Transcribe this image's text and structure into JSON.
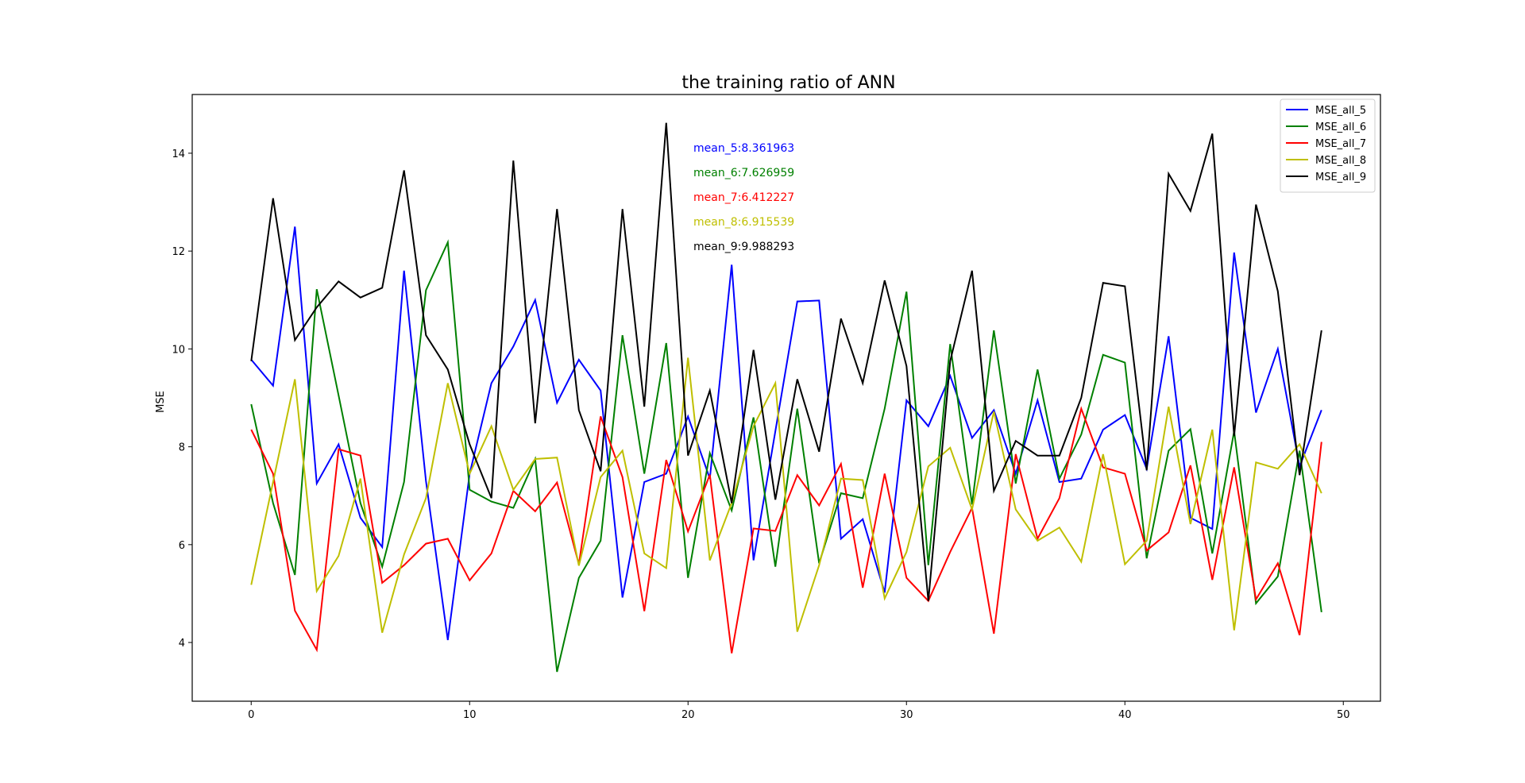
{
  "chart_data": {
    "type": "line",
    "title": "the training ratio of ANN",
    "xlabel": "",
    "ylabel": "MSE",
    "xlim": [
      -2.7,
      51.7
    ],
    "ylim": [
      2.8,
      15.2
    ],
    "xticks": [
      0,
      10,
      20,
      30,
      40,
      50
    ],
    "yticks": [
      4,
      6,
      8,
      10,
      12,
      14
    ],
    "grid": false,
    "legend_position": "top-right",
    "x": [
      0,
      1,
      2,
      3,
      4,
      5,
      6,
      7,
      8,
      9,
      10,
      11,
      12,
      13,
      14,
      15,
      16,
      17,
      18,
      19,
      20,
      21,
      22,
      23,
      24,
      25,
      26,
      27,
      28,
      29,
      30,
      31,
      32,
      33,
      34,
      35,
      36,
      37,
      38,
      39,
      40,
      41,
      42,
      43,
      44,
      45,
      46,
      47,
      48,
      49
    ],
    "series": [
      {
        "name": "MSE_all_5",
        "color": "#0000ff",
        "values": [
          9.78,
          9.25,
          12.5,
          7.25,
          8.05,
          6.55,
          5.95,
          11.6,
          7.3,
          4.05,
          7.45,
          9.3,
          10.05,
          11.0,
          8.9,
          9.78,
          9.15,
          4.92,
          7.28,
          7.45,
          8.62,
          7.35,
          11.72,
          5.68,
          8.32,
          10.97,
          10.99,
          6.12,
          6.52,
          5.02,
          8.95,
          8.42,
          9.45,
          8.18,
          8.75,
          7.45,
          8.95,
          7.28,
          7.35,
          8.35,
          8.65,
          7.55,
          10.26,
          6.55,
          6.32,
          11.97,
          8.7,
          10.0,
          7.6,
          8.75
        ]
      },
      {
        "name": "MSE_all_6",
        "color": "#008000",
        "values": [
          8.87,
          6.85,
          5.38,
          11.22,
          9.05,
          6.85,
          5.55,
          7.28,
          11.2,
          12.18,
          7.12,
          6.88,
          6.75,
          7.75,
          3.4,
          5.32,
          6.08,
          10.28,
          7.45,
          10.12,
          5.32,
          7.87,
          6.7,
          8.6,
          5.55,
          8.78,
          5.62,
          7.05,
          6.95,
          8.78,
          11.17,
          5.58,
          10.1,
          6.82,
          10.38,
          7.25,
          9.58,
          7.35,
          8.25,
          9.88,
          9.72,
          5.72,
          7.92,
          8.36,
          5.82,
          8.32,
          4.8,
          5.35,
          7.92,
          4.62
        ]
      },
      {
        "name": "MSE_all_7",
        "color": "#ff0000",
        "values": [
          8.35,
          7.45,
          4.65,
          3.85,
          7.95,
          7.82,
          5.22,
          5.58,
          6.02,
          6.12,
          5.27,
          5.82,
          7.1,
          6.68,
          7.27,
          5.6,
          8.62,
          7.38,
          4.64,
          7.73,
          6.27,
          7.43,
          3.78,
          6.33,
          6.28,
          7.42,
          6.8,
          7.65,
          5.12,
          7.45,
          5.32,
          4.85,
          5.85,
          6.75,
          4.18,
          7.85,
          6.12,
          6.95,
          8.78,
          7.58,
          7.45,
          5.88,
          6.25,
          7.62,
          5.28,
          7.58,
          4.88,
          5.62,
          4.15,
          8.1
        ]
      },
      {
        "name": "MSE_all_8",
        "color": "#bfbf00",
        "values": [
          5.18,
          7.28,
          9.38,
          5.05,
          5.77,
          7.35,
          4.2,
          5.8,
          6.95,
          9.3,
          7.45,
          8.42,
          7.12,
          7.75,
          7.78,
          5.57,
          7.38,
          7.92,
          5.82,
          5.52,
          9.82,
          5.68,
          6.85,
          8.42,
          9.3,
          4.22,
          5.58,
          7.35,
          7.32,
          4.9,
          5.85,
          7.6,
          7.98,
          6.72,
          8.72,
          6.72,
          6.08,
          6.35,
          5.65,
          7.85,
          5.6,
          6.08,
          8.82,
          6.42,
          8.35,
          4.25,
          7.68,
          7.55,
          8.05,
          7.05
        ]
      },
      {
        "name": "MSE_all_9",
        "color": "#000000",
        "values": [
          9.75,
          13.08,
          10.18,
          10.85,
          11.38,
          11.05,
          11.25,
          13.65,
          10.28,
          9.58,
          8.05,
          6.95,
          13.85,
          8.48,
          12.86,
          8.75,
          7.5,
          12.86,
          8.82,
          14.62,
          7.82,
          9.15,
          6.85,
          9.98,
          6.92,
          9.38,
          7.9,
          10.62,
          9.3,
          11.4,
          9.65,
          4.85,
          9.75,
          11.6,
          7.1,
          8.12,
          7.82,
          7.82,
          9.0,
          11.35,
          11.28,
          7.52,
          13.58,
          12.82,
          14.4,
          8.22,
          12.95,
          11.18,
          7.42,
          10.38
        ]
      }
    ],
    "annotations": [
      {
        "text": "mean_5:8.361963",
        "color": "#0000ff"
      },
      {
        "text": "mean_6:7.626959",
        "color": "#008000"
      },
      {
        "text": "mean_7:6.412227",
        "color": "#ff0000"
      },
      {
        "text": "mean_8:6.915539",
        "color": "#bfbf00"
      },
      {
        "text": "mean_9:9.988293",
        "color": "#000000"
      }
    ]
  }
}
